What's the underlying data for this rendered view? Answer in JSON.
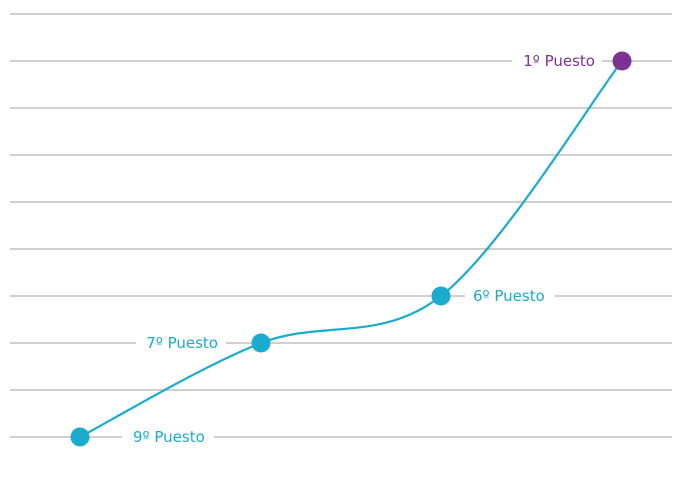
{
  "chart_data": {
    "type": "line",
    "title": "",
    "xlabel": "",
    "ylabel": "",
    "grid": true,
    "legend": "none",
    "y_axis_direction": "rank, 1 at top",
    "ylim": [
      0,
      9
    ],
    "points": [
      {
        "label": "9º Puesto",
        "rank": 9,
        "color": "#1aaccd"
      },
      {
        "label": "7º Puesto",
        "rank": 7,
        "color": "#1aaccd"
      },
      {
        "label": "6º Puesto",
        "rank": 6,
        "color": "#1aaccd"
      },
      {
        "label": "1º Puesto",
        "rank": 1,
        "color": "#7b3294"
      }
    ],
    "line_color": "#1aaccd",
    "grid_color": "#b3b3b3"
  }
}
